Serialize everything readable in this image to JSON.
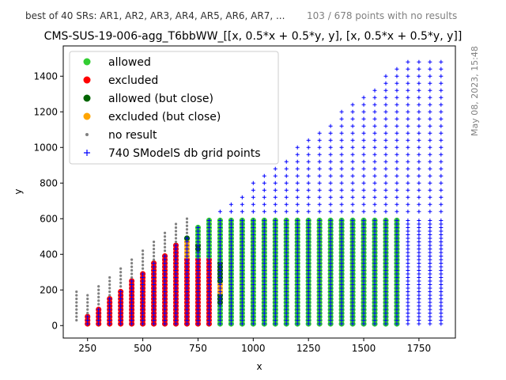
{
  "header": {
    "subtitle": "best of 40 SRs: AR1, AR2, AR3, AR4, AR5, AR6, AR7, ...",
    "no_results_note": "103 / 678 points with no results",
    "date_stamp": "May 08, 2023, 15:48"
  },
  "chart_data": {
    "type": "scatter",
    "title": "CMS-SUS-19-006-agg_T6bbWW_[[x, 0.5*x + 0.5*y, y], [x, 0.5*x + 0.5*y, y]]",
    "xlabel": "x",
    "ylabel": "y",
    "xlim": [
      140,
      1915
    ],
    "ylim": [
      -70,
      1570
    ],
    "xticks": [
      250,
      500,
      750,
      1000,
      1250,
      1500,
      1750
    ],
    "yticks": [
      0,
      200,
      400,
      600,
      800,
      1000,
      1200,
      1400
    ],
    "xtick_labels": [
      "250",
      "500",
      "750",
      "1000",
      "1250",
      "1500",
      "1750"
    ],
    "ytick_labels": [
      "0",
      "200",
      "400",
      "600",
      "800",
      "1000",
      "1200",
      "1400"
    ],
    "grid": false,
    "legend_position": "top-left",
    "legend": [
      {
        "label": "allowed",
        "color": "#32cd32",
        "marker": "circle"
      },
      {
        "label": "excluded",
        "color": "#ff0000",
        "marker": "circle"
      },
      {
        "label": "allowed (but close)",
        "color": "#006400",
        "marker": "circle"
      },
      {
        "label": "excluded (but close)",
        "color": "#ffa500",
        "marker": "circle"
      },
      {
        "label": "no result",
        "color": "#808080",
        "marker": "small-dot"
      },
      {
        "label": "740 SModelS db grid points",
        "color": "#0000ff",
        "marker": "plus"
      }
    ],
    "regions": {
      "grid_x_step": 50,
      "grid_x_range": [
        200,
        1850
      ],
      "grid_y_step_low": 20,
      "grid_y_step_high": 40,
      "grid_y_max_rule": "y <= x - 200 (up to 1500)",
      "no_result_column_x": 200,
      "excluded_x_range": [
        250,
        800
      ],
      "allowed_x_range": [
        750,
        1650
      ],
      "allowed_y_max": 600,
      "close_boundary_x": [
        700,
        850
      ],
      "colors": {
        "allowed": "#32cd32",
        "excluded": "#ff0000",
        "allowed_close": "#006400",
        "excluded_close": "#ffa500",
        "no_result": "#808080",
        "grid": "#0000ff"
      }
    }
  }
}
